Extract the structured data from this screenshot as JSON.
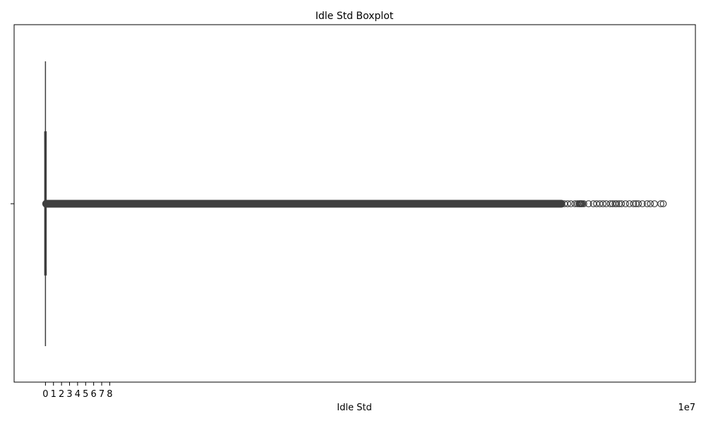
{
  "chart_data": {
    "type": "boxplot",
    "orientation": "horizontal",
    "title": "Idle Std Boxplot",
    "xlabel": "Idle Std",
    "ylabel": "",
    "x_scale_label": "1e7",
    "xlim": [
      -3.9,
      80.9
    ],
    "x_ticks": [
      0,
      1,
      2,
      3,
      4,
      5,
      6,
      7,
      8
    ],
    "y_ticks": [
      ""
    ],
    "grid": false,
    "box": {
      "min": 0,
      "q1": 0,
      "median": 0,
      "q3": 0,
      "max": 0
    },
    "outliers_dense_range": [
      0,
      64.3
    ],
    "outliers_sparse": [
      64.6,
      65.0,
      65.4,
      65.9,
      66.2,
      66.4,
      66.5,
      66.6,
      66.7,
      66.8,
      67.0,
      67.6,
      68.2,
      68.6,
      69.0,
      69.4,
      69.8,
      70.3,
      70.6,
      70.9,
      71.1,
      71.4,
      71.7,
      72.2,
      72.7,
      73.2,
      73.5,
      73.8,
      74.3,
      74.9,
      75.3,
      75.8,
      76.6,
      76.9
    ],
    "colors": {
      "box_edge": "#3f3f3f",
      "outlier_edge": "#3f3f3f",
      "axis": "#000000"
    }
  }
}
